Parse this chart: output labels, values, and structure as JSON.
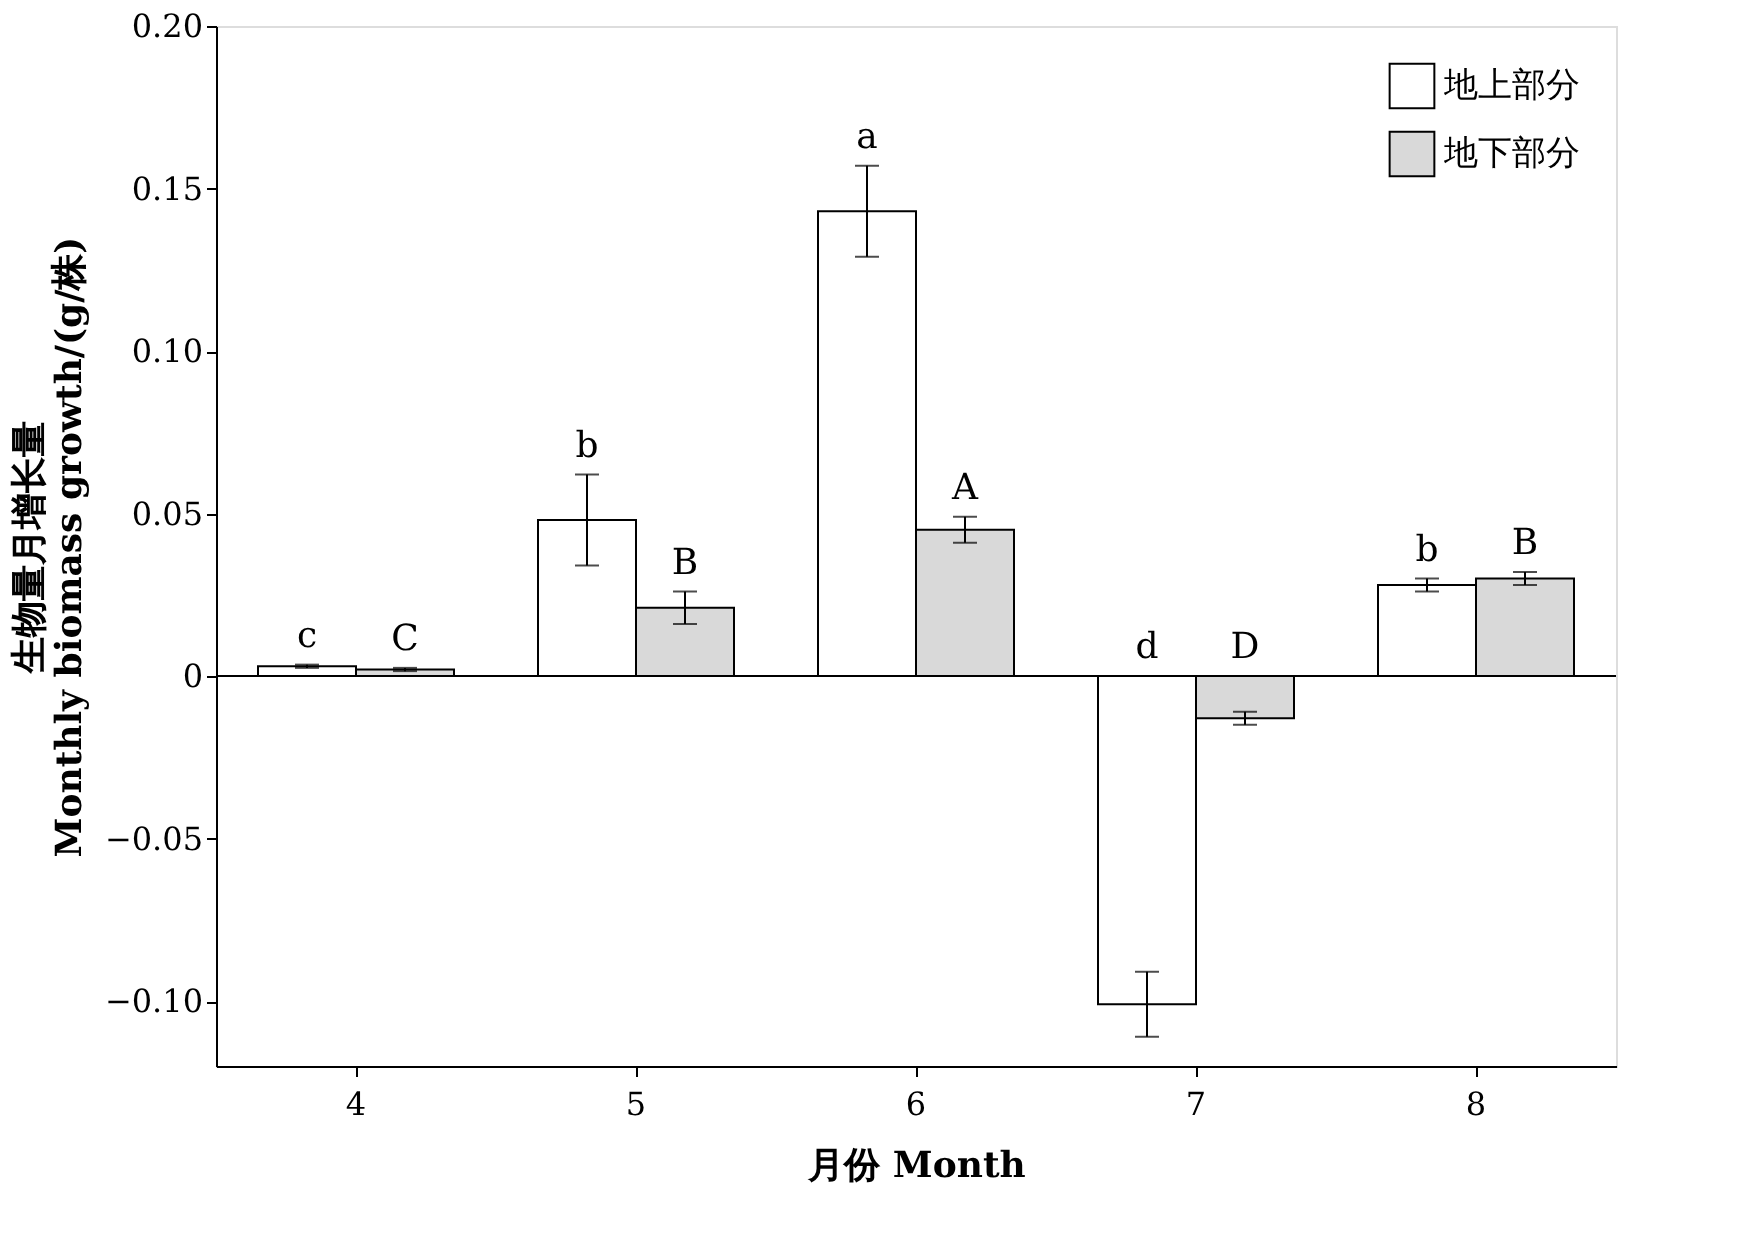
{
  "chart_data": {
    "type": "bar",
    "xlabel": "月份  Month",
    "ylabel": "生物量月增长量\nMonthly biomass growth/(g/株)",
    "categories": [
      "4",
      "5",
      "6",
      "7",
      "8"
    ],
    "series": [
      {
        "name": "地上部分",
        "color": "#ffffff",
        "values": [
          0.003,
          0.048,
          0.143,
          -0.101,
          0.028
        ],
        "errors": [
          0.0005,
          0.014,
          0.014,
          0.01,
          0.002
        ],
        "value_labels": [
          "c",
          "b",
          "a",
          "d",
          "b"
        ]
      },
      {
        "name": "地下部分",
        "color": "#d9d9d9",
        "values": [
          0.002,
          0.021,
          0.045,
          -0.013,
          0.03
        ],
        "errors": [
          0.0005,
          0.005,
          0.004,
          0.002,
          0.002
        ],
        "value_labels": [
          "C",
          "B",
          "A",
          "D",
          "B"
        ]
      }
    ],
    "ylim": [
      -0.12,
      0.2
    ],
    "yticks": [
      {
        "value": -0.1,
        "label": "−0.10"
      },
      {
        "value": -0.05,
        "label": "−0.05"
      },
      0,
      0.05,
      {
        "value": 0.1,
        "label": "0.10"
      },
      0.15,
      {
        "value": 0.2,
        "label": "0.20"
      }
    ],
    "ref_lines": [
      {
        "axis": "y",
        "value": 0
      }
    ],
    "grid": false,
    "legend": "top right"
  }
}
